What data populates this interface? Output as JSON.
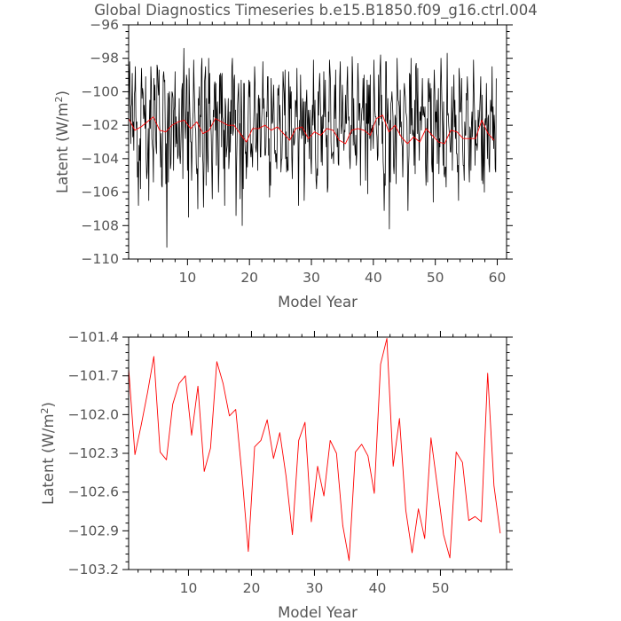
{
  "title": "Global Diagnostics Timeseries b.e15.B1850.f09_g16.ctrl.004",
  "colors": {
    "monthly": "#000000",
    "annual": "#ff0000",
    "axis": "#000000",
    "text": "#555555"
  },
  "chart_data": [
    {
      "type": "line",
      "title": "Global Diagnostics Timeseries b.e15.B1850.f09_g16.ctrl.004",
      "xlabel": "Model Year",
      "ylabel_main": "Latent (W/m",
      "ylabel_sup": "2",
      "ylabel_close": ")",
      "xlim": [
        0.5,
        61.5
      ],
      "ylim": [
        -110,
        -96
      ],
      "xticks": [
        10,
        20,
        30,
        40,
        50,
        60
      ],
      "yticks": [
        -110,
        -108,
        -106,
        -104,
        -102,
        -100,
        -98,
        -96
      ],
      "ytick_labels": [
        "−110",
        "−108",
        "−106",
        "−104",
        "−102",
        "−100",
        "−98",
        "−96"
      ],
      "series": [
        {
          "color": "#000000",
          "x_start": 0.5,
          "x_step": 0.0833333,
          "values": [
            -101.8,
            -99.6,
            -98.2,
            -100.5,
            -103.1,
            -100.9,
            -100.7,
            -98.9,
            -102.7,
            -101.8,
            -103.5,
            -100.2,
            -99.9,
            -98.5,
            -101.5,
            -102.2,
            -101.8,
            -105.1,
            -104.2,
            -106.8,
            -103.2,
            -104.1,
            -102.8,
            -105.8,
            -99.9,
            -98.6,
            -100.4,
            -99.8,
            -100.1,
            -101.6,
            -100.8,
            -101.5,
            -102.2,
            -99.1,
            -104.0,
            -105.2,
            -104.8,
            -103.7,
            -102.2,
            -106.5,
            -102.0,
            -100.5,
            -102.2,
            -98.5,
            -99.4,
            -102.8,
            -103.2,
            -103.5,
            -105.4,
            -99.2,
            -100.5,
            -99.6,
            -102.2,
            -103.3,
            -103.7,
            -98.4,
            -98.6,
            -99.7,
            -100.2,
            -98.7,
            -101.9,
            -102.9,
            -104.5,
            -102.5,
            -105.6,
            -105.7,
            -102.4,
            -99.1,
            -98.8,
            -99.4,
            -99.3,
            -102.7,
            -105.5,
            -103.1,
            -109.3,
            -102.2,
            -100.1,
            -105.4,
            -100.4,
            -100.0,
            -101.1,
            -104.6,
            -104.3,
            -102.3,
            -100.0,
            -100.1,
            -100.4,
            -104.7,
            -101.1,
            -100.9,
            -98.8,
            -103.3,
            -101.5,
            -103.1,
            -101.9,
            -104.0,
            -103.8,
            -102.5,
            -100.4,
            -103.8,
            -104.3,
            -103.4,
            -102.1,
            -99.9,
            -99.5,
            -105.2,
            -99.8,
            -97.4,
            -100.9,
            -101.9,
            -102.8,
            -101.4,
            -99.0,
            -99.3,
            -104.7,
            -101.2,
            -107.5,
            -98.6,
            -100.5,
            -101.7,
            -103.0,
            -103.0,
            -105.3,
            -103.4,
            -101.7,
            -101.2,
            -98.1,
            -99.8,
            -100.8,
            -102.1,
            -102.3,
            -104.3,
            -104.9,
            -104.6,
            -107.0,
            -100.4,
            -100.8,
            -99.7,
            -103.9,
            -101.4,
            -101.5,
            -98.6,
            -98.0,
            -103.6,
            -104.3,
            -106.9,
            -104.4,
            -99.4,
            -99.0,
            -98.5,
            -105.6,
            -100.4,
            -103.0,
            -104.2,
            -104.8,
            -98.0,
            -100.7,
            -98.9,
            -102.1,
            -101.7,
            -102.6,
            -104.5,
            -106.4,
            -103.0,
            -101.1,
            -101.5,
            -99.6,
            -99.4,
            -102.3,
            -99.5,
            -104.4,
            -101.1,
            -100.6,
            -102.8,
            -106.0,
            -104.5,
            -99.0,
            -101.3,
            -98.9,
            -99.1,
            -103.3,
            -98.9,
            -101.5,
            -101.7,
            -104.6,
            -102.3,
            -106.8,
            -100.4,
            -100.9,
            -103.9,
            -103.5,
            -103.2,
            -101.5,
            -100.4,
            -104.6,
            -103.9,
            -101.2,
            -103.6,
            -100.5,
            -102.5,
            -98.5,
            -98.0,
            -102.6,
            -102.3,
            -99.3,
            -99.0,
            -101.9,
            -101.1,
            -107.4,
            -104.5,
            -102.9,
            -100.8,
            -100.1,
            -99.5,
            -102.3,
            -101.9,
            -106.4,
            -102.8,
            -99.3,
            -101.5,
            -108.0,
            -102.6,
            -105.8,
            -99.5,
            -99.5,
            -102.9,
            -103.7,
            -103.6,
            -105.2,
            -102.9,
            -104.5,
            -102.6,
            -100.5,
            -99.3,
            -100.3,
            -99.4,
            -103.6,
            -103.9,
            -103.1,
            -103.6,
            -104.5,
            -102.2,
            -102.1,
            -100.9,
            -98.5,
            -99.5,
            -103.3,
            -103.6,
            -103.0,
            -101.3,
            -104.7,
            -100.5,
            -100.2,
            -102.2,
            -100.4,
            -103.9,
            -103.9,
            -102.2,
            -101.4,
            -100.6,
            -98.2,
            -101.0,
            -100.4,
            -101.6,
            -103.8,
            -103.8,
            -103.3,
            -101.2,
            -101.5,
            -99.1,
            -99.1,
            -103.8,
            -102.8,
            -106.3,
            -104.2,
            -105.6,
            -99.2,
            -100.4,
            -101.9,
            -101.8,
            -100.9,
            -99.6,
            -101.9,
            -103.7,
            -103.5,
            -104.2,
            -103.7,
            -104.6,
            -102.0,
            -99.8,
            -100.2,
            -99.6,
            -102.2,
            -100.8,
            -102.0,
            -104.8,
            -104.1,
            -104.0,
            -102.3,
            -98.8,
            -99.5,
            -100.1,
            -101.4,
            -98.7,
            -104.0,
            -102.4,
            -104.8,
            -103.9,
            -104.7,
            -104.7,
            -98.8,
            -100.1,
            -102.8,
            -99.7,
            -101.0,
            -100.0,
            -103.9,
            -105.2,
            -102.7,
            -102.2,
            -103.2,
            -103.1,
            -102.7,
            -100.5,
            -100.6,
            -101.5,
            -98.6,
            -101.6,
            -102.4,
            -106.8,
            -103.1,
            -101.7,
            -102.3,
            -99.0,
            -101.2,
            -102.8,
            -102.2,
            -100.4,
            -102.6,
            -100.6,
            -106.5,
            -104.8,
            -100.6,
            -103.1,
            -100.6,
            -99.9,
            -101.5,
            -103.0,
            -101.1,
            -101.6,
            -104.0,
            -101.1,
            -102.6,
            -104.1,
            -104.9,
            -101.7,
            -100.8,
            -102.0,
            -98.1,
            -101.0,
            -102.3,
            -100.5,
            -104.0,
            -105.3,
            -105.8,
            -104.6,
            -105.0,
            -100.0,
            -101.4,
            -99.8,
            -98.9,
            -100.1,
            -101.3,
            -104.2,
            -101.5,
            -104.4,
            -101.4,
            -102.2,
            -98.8,
            -101.0,
            -101.5,
            -99.3,
            -102.7,
            -103.3,
            -102.6,
            -106.0,
            -105.7,
            -101.2,
            -101.8,
            -98.1,
            -98.7,
            -99.4,
            -103.0,
            -104.0,
            -103.8,
            -103.7,
            -103.6,
            -104.3,
            -101.3,
            -99.6,
            -101.6,
            -98.7,
            -102.4,
            -102.8,
            -103.3,
            -102.2,
            -104.3,
            -104.4,
            -100.9,
            -99.1,
            -98.2,
            -101.7,
            -102.5,
            -101.9,
            -99.6,
            -100.8,
            -102.6,
            -103.5,
            -102.3,
            -102.4,
            -100.2,
            -101.9,
            -101.9,
            -99.5,
            -98.5,
            -101.0,
            -101.7,
            -101.5,
            -103.9,
            -104.6,
            -102.8,
            -102.0,
            -102.5,
            -97.9,
            -99.0,
            -103.2,
            -100.4,
            -103.0,
            -103.2,
            -103.8,
            -102.6,
            -104.4,
            -103.7,
            -101.0,
            -98.3,
            -99.5,
            -101.7,
            -100.7,
            -100.7,
            -105.6,
            -102.3,
            -101.5,
            -101.0,
            -100.9,
            -99.2,
            -101.7,
            -99.0,
            -102.0,
            -102.4,
            -105.3,
            -100.7,
            -101.9,
            -99.3,
            -106.1,
            -99.6,
            -101.9,
            -99.6,
            -102.8,
            -99.0,
            -103.5,
            -102.2,
            -102.4,
            -102.0,
            -102.5,
            -103.4,
            -98.1,
            -99.8,
            -101.1,
            -101.5,
            -101.5,
            -102.3,
            -102.7,
            -104.1,
            -103.8,
            -99.0,
            -102.0,
            -100.1,
            -98.5,
            -97.8,
            -101.6,
            -100.2,
            -103.1,
            -101.8,
            -104.2,
            -104.9,
            -107.1,
            -104.9,
            -105.6,
            -98.2,
            -98.2,
            -101.7,
            -101.9,
            -100.4,
            -101.8,
            -102.4,
            -108.2,
            -101.7,
            -105.4,
            -100.7,
            -100.5,
            -100.0,
            -100.7,
            -101.5,
            -104.4,
            -104.9,
            -103.9,
            -101.4,
            -101.6,
            -105.5,
            -102.0,
            -98.0,
            -99.7,
            -100.5,
            -100.6,
            -100.9,
            -102.6,
            -99.9,
            -102.1,
            -101.8,
            -103.0,
            -103.3,
            -105.1,
            -103.0,
            -100.4,
            -99.5,
            -100.0,
            -100.3,
            -101.2,
            -101.4,
            -101.7,
            -104.2,
            -107.1,
            -104.7,
            -103.8,
            -98.9,
            -99.0,
            -102.5,
            -98.0,
            -102.0,
            -101.0,
            -102.6,
            -102.3,
            -102.6,
            -104.4,
            -100.5,
            -104.9,
            -98.5,
            -98.3,
            -100.4,
            -102.5,
            -98.6,
            -102.2,
            -102.6,
            -104.1,
            -101.2,
            -101.7,
            -100.9,
            -102.3,
            -100.6,
            -99.2,
            -101.4,
            -100.9,
            -101.4,
            -101.5,
            -100.9,
            -104.3,
            -105.6,
            -103.9,
            -101.6,
            -105.4,
            -99.5,
            -99.2,
            -100.6,
            -100.3,
            -99.5,
            -102.6,
            -99.8,
            -104.3,
            -104.8,
            -102.8,
            -106.6,
            -100.4,
            -98.7,
            -100.0,
            -102.7,
            -101.2,
            -101.8,
            -100.5,
            -104.3,
            -101.5,
            -99.8,
            -104.9,
            -102.8,
            -103.3,
            -99.8,
            -98.0,
            -99.4,
            -101.0,
            -102.1,
            -104.4,
            -100.6,
            -104.9,
            -105.1,
            -104.5,
            -104.5,
            -105.7,
            -101.6,
            -97.7,
            -101.4,
            -101.3,
            -102.0,
            -102.4,
            -102.8,
            -103.6,
            -103.6,
            -101.8,
            -99.7,
            -104.7,
            -101.4,
            -100.9,
            -99.0,
            -102.1,
            -100.5,
            -102.8,
            -101.4,
            -103.7,
            -103.7,
            -104.8,
            -104.4,
            -106.5,
            -98.6,
            -99.3,
            -101.2,
            -101.2,
            -100.5,
            -99.2,
            -102.0,
            -103.3,
            -104.4,
            -104.4,
            -105.3,
            -101.8,
            -102.6,
            -102.6,
            -100.1,
            -100.5,
            -99.1,
            -100.1,
            -102.6,
            -104.4,
            -105.4,
            -102.1,
            -102.3,
            -104.7,
            -101.9,
            -101.2,
            -102.7,
            -100.9,
            -98.1,
            -100.0,
            -101.2,
            -104.4,
            -101.7,
            -103.2,
            -103.1,
            -103.5,
            -103.0,
            -101.1,
            -102.1,
            -101.7,
            -101.1,
            -100.2,
            -99.1,
            -102.9,
            -105.3,
            -100.2,
            -105.5,
            -104.4,
            -102.1,
            -106.0,
            -101.8,
            -101.6,
            -102.0,
            -99.5,
            -102.0,
            -104.0,
            -101.6,
            -101.4,
            -104.3,
            -104.8,
            -102.3,
            -100.5,
            -101.1,
            -101.2,
            -98.5,
            -102.9,
            -100.9,
            -103.4,
            -101.4,
            -102.1,
            -104.6,
            -104.8,
            -99.2
          ]
        },
        {
          "color": "#ff0000",
          "x_start": 0.5,
          "x_step": 1,
          "values": [
            -101.6,
            -102.3,
            -102.1,
            -101.8,
            -101.5,
            -102.3,
            -102.4,
            -102.0,
            -101.8,
            -101.7,
            -102.2,
            -101.8,
            -102.5,
            -102.3,
            -101.6,
            -101.8,
            -102.0,
            -102.0,
            -102.5,
            -103.0,
            -102.2,
            -102.2,
            -102.0,
            -102.3,
            -102.1,
            -102.5,
            -102.9,
            -102.2,
            -102.1,
            -102.8,
            -102.4,
            -102.6,
            -102.2,
            -102.3,
            -102.9,
            -103.1,
            -102.3,
            -102.2,
            -102.3,
            -102.6,
            -101.6,
            -101.4,
            -102.4,
            -102.0,
            -102.7,
            -103.1,
            -102.7,
            -103.0,
            -102.2,
            -102.6,
            -103.0,
            -103.1,
            -102.3,
            -102.4,
            -102.8,
            -102.8,
            -102.8,
            -101.7,
            -102.5,
            -102.9
          ]
        }
      ]
    },
    {
      "type": "line",
      "xlabel": "Model Year",
      "ylabel_main": "Latent (W/m",
      "ylabel_sup": "2",
      "ylabel_close": ")",
      "xlim": [
        0.5,
        60.5
      ],
      "ylim": [
        -103.2,
        -101.4
      ],
      "xticks": [
        10,
        20,
        30,
        40,
        50
      ],
      "yticks": [
        -103.2,
        -102.9,
        -102.6,
        -102.3,
        -102.0,
        -101.7,
        -101.4
      ],
      "ytick_labels": [
        "−103.2",
        "−102.9",
        "−102.6",
        "−102.3",
        "−102.0",
        "−101.7",
        "−101.4"
      ],
      "series": [
        {
          "color": "#ff0000",
          "x_start": 0.5,
          "x_step": 1,
          "values": [
            -101.64,
            -102.31,
            -102.08,
            -101.83,
            -101.55,
            -102.29,
            -102.35,
            -101.92,
            -101.76,
            -101.7,
            -102.16,
            -101.78,
            -102.44,
            -102.26,
            -101.59,
            -101.76,
            -102.01,
            -101.96,
            -102.47,
            -103.06,
            -102.25,
            -102.2,
            -102.04,
            -102.34,
            -102.14,
            -102.48,
            -102.93,
            -102.2,
            -102.06,
            -102.83,
            -102.4,
            -102.63,
            -102.2,
            -102.3,
            -102.86,
            -103.13,
            -102.29,
            -102.23,
            -102.32,
            -102.61,
            -101.61,
            -101.41,
            -102.4,
            -102.03,
            -102.74,
            -103.07,
            -102.73,
            -102.96,
            -102.18,
            -102.55,
            -102.93,
            -103.11,
            -102.29,
            -102.37,
            -102.82,
            -102.79,
            -102.83,
            -101.68,
            -102.55,
            -102.92
          ]
        }
      ]
    }
  ]
}
